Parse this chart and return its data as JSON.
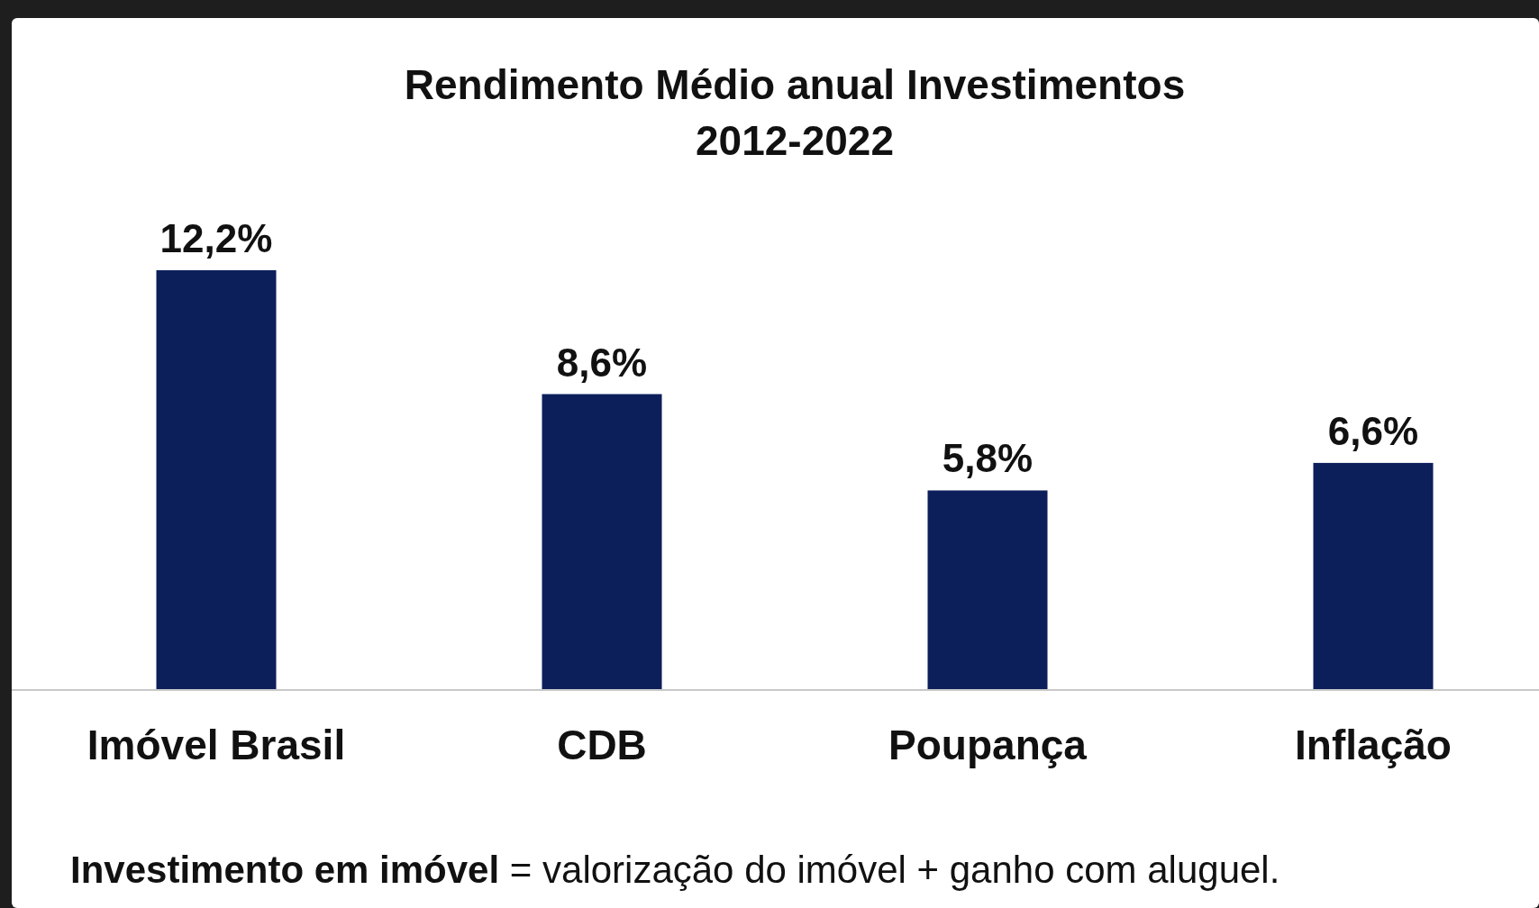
{
  "chart_data": {
    "type": "bar",
    "title": "Rendimento Médio anual Investimentos\n2012-2022",
    "categories": [
      "Imóvel Brasil",
      "CDB",
      "Poupança",
      "Inflação"
    ],
    "values": [
      12.2,
      8.6,
      5.8,
      6.6
    ],
    "value_labels": [
      "12,2%",
      "8,6%",
      "5,8%",
      "6,6%"
    ],
    "color": "#0c1f5b",
    "annotations": [
      "Investimento em imóvel = valorização do imóvel + ganho com aluguel."
    ]
  }
}
